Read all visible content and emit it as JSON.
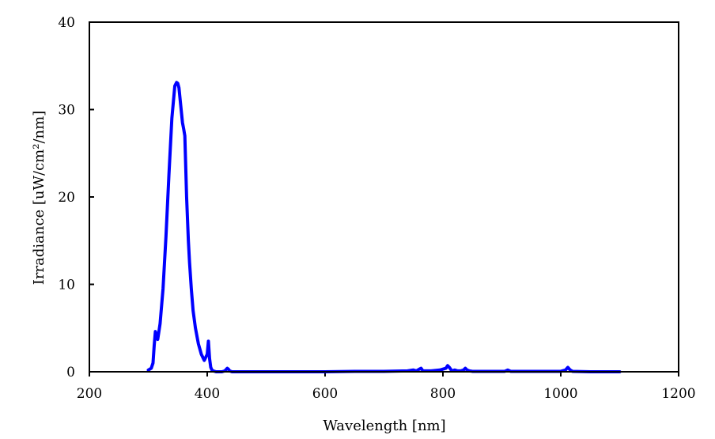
{
  "chart_data": {
    "type": "line",
    "title": "",
    "xlabel": "Wavelength [nm]",
    "ylabel": "Irradiance [uW/cm²/nm]",
    "xlim": [
      200,
      1200
    ],
    "ylim": [
      0,
      40
    ],
    "x_ticks": [
      200,
      400,
      600,
      800,
      1000,
      1200
    ],
    "y_ticks": [
      0,
      10,
      20,
      30,
      40
    ],
    "grid": false,
    "legend": "none",
    "series": [
      {
        "color": "#0000ff",
        "x": [
          300,
          305,
          308,
          310,
          312,
          314,
          316,
          320,
          325,
          330,
          335,
          340,
          345,
          348,
          350,
          352,
          355,
          358,
          360,
          362,
          365,
          368,
          370,
          373,
          376,
          380,
          385,
          390,
          395,
          400,
          402,
          404,
          406,
          408,
          410,
          415,
          420,
          425,
          430,
          434,
          436,
          438,
          442,
          450,
          500,
          550,
          600,
          650,
          700,
          740,
          750,
          755,
          760,
          763,
          766,
          770,
          780,
          795,
          800,
          805,
          808,
          811,
          815,
          820,
          825,
          830,
          835,
          838,
          841,
          845,
          850,
          880,
          905,
          910,
          915,
          920,
          950,
          1000,
          1008,
          1012,
          1016,
          1020,
          1050,
          1100
        ],
        "y": [
          0.2,
          0.4,
          1.0,
          3.0,
          4.6,
          4.2,
          3.7,
          5.5,
          9.5,
          15.5,
          22.5,
          29.0,
          32.7,
          33.1,
          33.0,
          32.5,
          30.5,
          28.5,
          27.8,
          27.0,
          20.0,
          15.0,
          12.5,
          9.5,
          7.0,
          5.0,
          3.2,
          2.0,
          1.3,
          2.0,
          3.5,
          1.5,
          0.5,
          0.2,
          0.1,
          0.0,
          0.0,
          0.0,
          0.1,
          0.4,
          0.3,
          0.1,
          0.0,
          0.0,
          0.0,
          0.0,
          0.0,
          0.05,
          0.05,
          0.1,
          0.2,
          0.1,
          0.3,
          0.4,
          0.1,
          0.1,
          0.1,
          0.2,
          0.3,
          0.4,
          0.7,
          0.5,
          0.1,
          0.2,
          0.1,
          0.1,
          0.2,
          0.4,
          0.2,
          0.1,
          0.05,
          0.05,
          0.05,
          0.2,
          0.05,
          0.05,
          0.05,
          0.05,
          0.2,
          0.5,
          0.2,
          0.05,
          0.0,
          0.0
        ]
      }
    ]
  }
}
